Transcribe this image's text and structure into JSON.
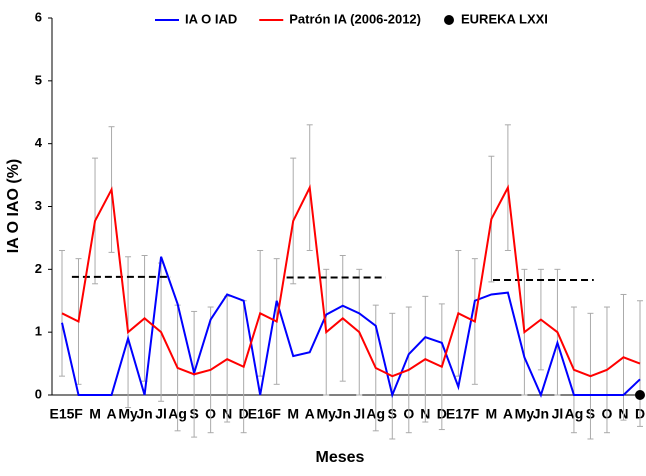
{
  "chart_data": {
    "type": "line",
    "xlabel": "Meses",
    "ylabel": "IA O IAO (%)",
    "categories": [
      "E15",
      "F",
      "M",
      "A",
      "My",
      "Jn",
      "Jl",
      "Ag",
      "S",
      "O",
      "N",
      "D",
      "E16",
      "F",
      "M",
      "A",
      "My",
      "Jn",
      "Jl",
      "Ag",
      "S",
      "O",
      "N",
      "D",
      "E17",
      "F",
      "M",
      "A",
      "My",
      "Jn",
      "Jl",
      "Ag",
      "S",
      "O",
      "N",
      "D"
    ],
    "series": [
      {
        "name": "IA O IAD",
        "color": "#0000ff",
        "values": [
          1.15,
          0,
          0,
          0,
          0.9,
          0,
          2.2,
          1.45,
          0.35,
          1.2,
          1.6,
          1.5,
          0,
          1.5,
          0.62,
          0.68,
          1.28,
          1.42,
          1.3,
          1.1,
          0,
          0.65,
          0.92,
          0.83,
          0.13,
          1.5,
          1.6,
          1.63,
          0.6,
          0,
          0.83,
          0,
          0,
          0,
          0,
          0.25
        ]
      },
      {
        "name": "Patrón IA (2006-2012)",
        "color": "#ff0000",
        "values": [
          1.3,
          1.17,
          2.77,
          3.27,
          1.0,
          1.22,
          1.0,
          0.43,
          0.33,
          0.4,
          0.57,
          0.45,
          1.3,
          1.17,
          2.77,
          3.3,
          1.0,
          1.22,
          1.0,
          0.43,
          0.3,
          0.4,
          0.57,
          0.45,
          1.3,
          1.17,
          2.8,
          3.3,
          1.0,
          1.2,
          1.0,
          0.4,
          0.3,
          0.4,
          0.6,
          0.5
        ],
        "errors": [
          1.0,
          1.0,
          1.0,
          1.0,
          1.2,
          1.0,
          1.1,
          1.0,
          1.0,
          1.0,
          1.0,
          1.05,
          1.0,
          1.0,
          1.0,
          1.0,
          1.0,
          1.0,
          1.0,
          1.0,
          1.0,
          1.0,
          1.0,
          1.0,
          1.0,
          1.0,
          1.0,
          1.0,
          1.0,
          0.8,
          1.0,
          1.0,
          1.0,
          1.0,
          1.0,
          1.0
        ]
      },
      {
        "name": "EUREKA LXXI",
        "color": "#000000",
        "marker": "dot",
        "values": [
          null,
          null,
          null,
          null,
          null,
          null,
          null,
          null,
          null,
          null,
          null,
          null,
          null,
          null,
          null,
          null,
          null,
          null,
          null,
          null,
          null,
          null,
          null,
          null,
          null,
          null,
          null,
          null,
          null,
          null,
          null,
          null,
          null,
          null,
          null,
          0
        ]
      }
    ],
    "reference_lines": [
      {
        "y": 1.88,
        "x": [
          0.6,
          6.6
        ]
      },
      {
        "y": 1.87,
        "x": [
          13.6,
          19.6
        ]
      },
      {
        "y": 1.83,
        "x": [
          26.1,
          32.2
        ]
      }
    ],
    "ylim": [
      0,
      6
    ],
    "yticks": [
      0,
      1,
      2,
      3,
      4,
      5,
      6
    ],
    "grid": false
  }
}
